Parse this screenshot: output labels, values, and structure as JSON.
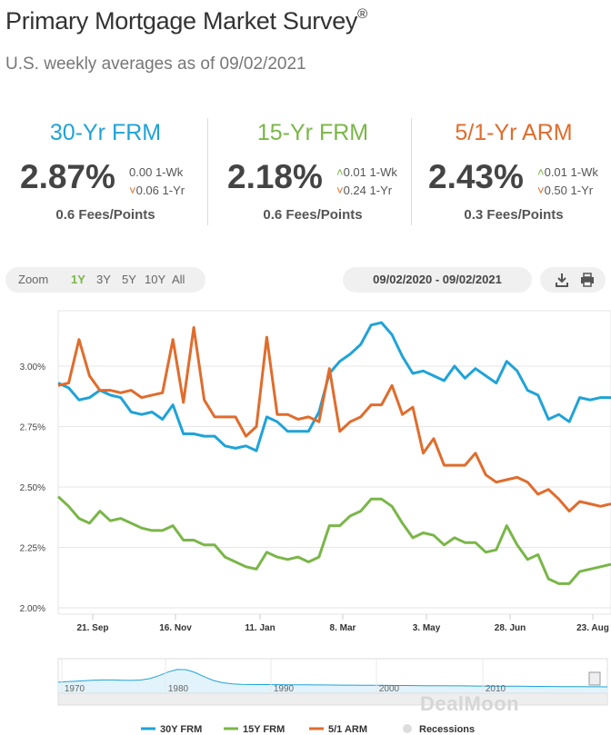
{
  "header": {
    "title": "Primary Mortgage Market Survey",
    "reg_mark": "®",
    "subtitle": "U.S. weekly averages as of 09/02/2021"
  },
  "rates": [
    {
      "name": "30-Yr FRM",
      "color": "#1fa3d8",
      "rate": "2.87%",
      "week_arrow": "",
      "week_change": "0.00",
      "week_label": "1-Wk",
      "year_arrow": "˅",
      "year_change": "0.06",
      "year_label": "1-Yr",
      "fees": "0.6 Fees/Points"
    },
    {
      "name": "15-Yr FRM",
      "color": "#7ab648",
      "rate": "2.18%",
      "week_arrow": "˄",
      "week_change": "0.01",
      "week_label": "1-Wk",
      "year_arrow": "˅",
      "year_change": "0.24",
      "year_label": "1-Yr",
      "fees": "0.6 Fees/Points"
    },
    {
      "name": "5/1-Yr ARM",
      "color": "#e06c2c",
      "rate": "2.43%",
      "week_arrow": "˄",
      "week_change": "0.01",
      "week_label": "1-Wk",
      "year_arrow": "˅",
      "year_change": "0.50",
      "year_label": "1-Yr",
      "fees": "0.3 Fees/Points"
    }
  ],
  "controls": {
    "zoom_label": "Zoom",
    "zoom_options": [
      "1Y",
      "3Y",
      "5Y",
      "10Y",
      "All"
    ],
    "zoom_selected": "1Y",
    "date_range": "09/02/2020 - 09/02/2021",
    "download_icon": "download-icon",
    "print_icon": "print-icon"
  },
  "watermark": "DealMoon",
  "chart_data": {
    "type": "line",
    "x_ticks": [
      "21. Sep",
      "16. Nov",
      "11. Jan",
      "8. Mar",
      "3. May",
      "28. Jun",
      "23. Aug"
    ],
    "y_ticks": [
      "2.00%",
      "2.25%",
      "2.50%",
      "2.75%",
      "3.00%"
    ],
    "ylim": [
      2.0,
      3.25
    ],
    "series": [
      {
        "name": "30Y FRM",
        "color": "#1fa3d8",
        "values": [
          2.93,
          2.91,
          2.86,
          2.87,
          2.9,
          2.88,
          2.87,
          2.81,
          2.8,
          2.81,
          2.78,
          2.84,
          2.72,
          2.72,
          2.71,
          2.71,
          2.67,
          2.66,
          2.67,
          2.65,
          2.79,
          2.77,
          2.73,
          2.73,
          2.73,
          2.81,
          2.97,
          3.02,
          3.05,
          3.09,
          3.17,
          3.18,
          3.13,
          3.04,
          2.97,
          2.98,
          2.96,
          2.94,
          3.0,
          2.95,
          2.99,
          2.96,
          2.93,
          3.02,
          2.98,
          2.9,
          2.88,
          2.78,
          2.8,
          2.77,
          2.87,
          2.86,
          2.87,
          2.87
        ]
      },
      {
        "name": "15Y FRM",
        "color": "#7ab648",
        "values": [
          2.46,
          2.42,
          2.37,
          2.35,
          2.4,
          2.36,
          2.37,
          2.35,
          2.33,
          2.32,
          2.32,
          2.34,
          2.28,
          2.28,
          2.26,
          2.26,
          2.21,
          2.19,
          2.17,
          2.16,
          2.23,
          2.21,
          2.2,
          2.21,
          2.19,
          2.21,
          2.34,
          2.34,
          2.38,
          2.4,
          2.45,
          2.45,
          2.42,
          2.35,
          2.29,
          2.31,
          2.3,
          2.26,
          2.29,
          2.27,
          2.27,
          2.23,
          2.24,
          2.34,
          2.26,
          2.2,
          2.22,
          2.12,
          2.1,
          2.1,
          2.15,
          2.16,
          2.17,
          2.18
        ]
      },
      {
        "name": "5/1 ARM",
        "color": "#e06c2c",
        "values": [
          2.92,
          2.93,
          3.11,
          2.96,
          2.9,
          2.9,
          2.89,
          2.9,
          2.87,
          2.88,
          2.89,
          3.11,
          2.85,
          3.16,
          2.86,
          2.79,
          2.79,
          2.79,
          2.71,
          2.75,
          3.12,
          2.8,
          2.8,
          2.78,
          2.79,
          2.77,
          2.99,
          2.73,
          2.77,
          2.79,
          2.84,
          2.84,
          2.92,
          2.8,
          2.83,
          2.64,
          2.7,
          2.59,
          2.59,
          2.59,
          2.64,
          2.55,
          2.52,
          2.53,
          2.54,
          2.52,
          2.47,
          2.49,
          2.45,
          2.4,
          2.44,
          2.43,
          2.42,
          2.43
        ]
      }
    ],
    "navigator": {
      "ticks": [
        "1970",
        "1980",
        "1990",
        "2000",
        "2010"
      ]
    },
    "legend": {
      "position": "bottom",
      "items": [
        "30Y FRM",
        "15Y FRM",
        "5/1 ARM",
        "Recessions"
      ]
    },
    "grid": true
  }
}
